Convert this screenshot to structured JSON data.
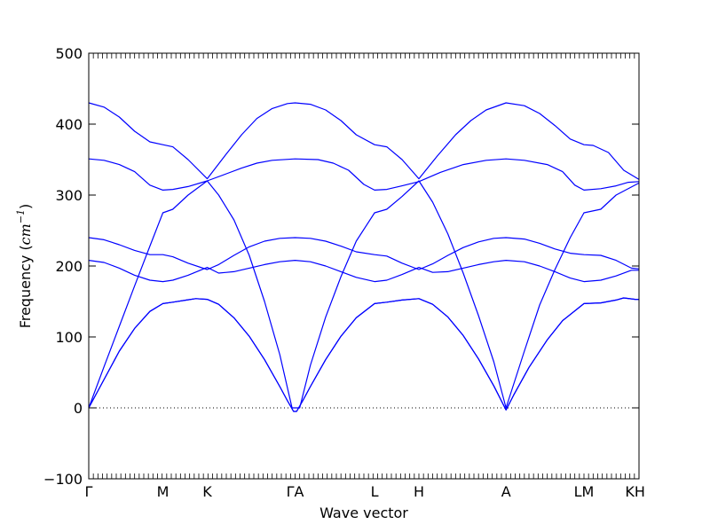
{
  "chart_data": {
    "type": "line",
    "title": "",
    "xlabel": "Wave vector",
    "ylabel_prefix": "Frequency (",
    "ylabel_unit_base": "cm",
    "ylabel_unit_exp": "−1",
    "ylabel_suffix": ")",
    "ylim": [
      -100,
      500
    ],
    "yticks": [
      -100,
      0,
      100,
      200,
      300,
      400,
      500
    ],
    "ytick_labels": [
      "−100",
      "0",
      "100",
      "200",
      "300",
      "400",
      "500"
    ],
    "xlim": [
      0,
      3.6
    ],
    "xticks": [
      {
        "label": "Γ",
        "x": 0.0
      },
      {
        "label": "M",
        "x": 0.485
      },
      {
        "label": "K",
        "x": 0.775
      },
      {
        "label": "ΓA",
        "x": 1.35
      },
      {
        "label": "L",
        "x": 1.87
      },
      {
        "label": "H",
        "x": 2.16
      },
      {
        "label": "A",
        "x": 2.73
      },
      {
        "label": "LM",
        "x": 3.24
      },
      {
        "label": "KH",
        "x": 3.575
      }
    ],
    "zero_line": true,
    "series_color": "#0000ff",
    "series": [
      {
        "values": [
          [
            0,
            0
          ],
          [
            0.1,
            40
          ],
          [
            0.2,
            80
          ],
          [
            0.3,
            112
          ],
          [
            0.4,
            136
          ],
          [
            0.485,
            147
          ],
          [
            0.55,
            149
          ],
          [
            0.64,
            152
          ],
          [
            0.7,
            154
          ],
          [
            0.775,
            153
          ],
          [
            0.85,
            146
          ],
          [
            0.95,
            127
          ],
          [
            1.05,
            101
          ],
          [
            1.15,
            68
          ],
          [
            1.25,
            30
          ],
          [
            1.3,
            10
          ],
          [
            1.34,
            -5
          ],
          [
            1.35,
            -5
          ],
          [
            1.36,
            -5
          ],
          [
            1.4,
            10
          ],
          [
            1.45,
            30
          ],
          [
            1.55,
            68
          ],
          [
            1.65,
            101
          ],
          [
            1.75,
            127
          ],
          [
            1.87,
            147
          ],
          [
            1.95,
            149
          ],
          [
            2.05,
            152
          ],
          [
            2.16,
            154
          ],
          [
            2.25,
            146
          ],
          [
            2.35,
            128
          ],
          [
            2.45,
            102
          ],
          [
            2.55,
            69
          ],
          [
            2.65,
            31
          ],
          [
            2.73,
            -3
          ],
          [
            2.78,
            18
          ],
          [
            2.88,
            57
          ],
          [
            3.0,
            96
          ],
          [
            3.1,
            123
          ],
          [
            3.24,
            147
          ],
          [
            3.35,
            148
          ],
          [
            3.45,
            152
          ],
          [
            3.5,
            155
          ],
          [
            3.575,
            153
          ],
          [
            3.6,
            153
          ]
        ]
      },
      {
        "values": [
          [
            0,
            0
          ],
          [
            0.1,
            40
          ],
          [
            0.2,
            80
          ],
          [
            0.3,
            112
          ],
          [
            0.4,
            136
          ],
          [
            0.485,
            147
          ],
          [
            0.55,
            149
          ],
          [
            0.64,
            152
          ],
          [
            0.7,
            154
          ],
          [
            0.775,
            153
          ],
          [
            0.85,
            146
          ],
          [
            0.95,
            127
          ],
          [
            1.05,
            101
          ],
          [
            1.15,
            68
          ],
          [
            1.25,
            30
          ],
          [
            1.3,
            10
          ],
          [
            1.34,
            -5
          ],
          [
            1.35,
            -5
          ],
          [
            1.36,
            -5
          ],
          [
            1.4,
            10
          ],
          [
            1.45,
            30
          ],
          [
            1.55,
            68
          ],
          [
            1.65,
            101
          ],
          [
            1.75,
            127
          ],
          [
            1.87,
            147
          ],
          [
            1.95,
            149
          ],
          [
            2.05,
            152
          ],
          [
            2.16,
            154
          ],
          [
            2.25,
            146
          ],
          [
            2.35,
            128
          ],
          [
            2.45,
            102
          ],
          [
            2.55,
            69
          ],
          [
            2.65,
            31
          ],
          [
            2.73,
            -3
          ],
          [
            2.78,
            18
          ],
          [
            2.88,
            57
          ],
          [
            3.0,
            96
          ],
          [
            3.1,
            123
          ],
          [
            3.24,
            147
          ],
          [
            3.35,
            148
          ],
          [
            3.45,
            152
          ],
          [
            3.5,
            155
          ],
          [
            3.575,
            153
          ],
          [
            3.6,
            153
          ]
        ]
      },
      {
        "values": [
          [
            0,
            0
          ],
          [
            0.1,
            58
          ],
          [
            0.2,
            115
          ],
          [
            0.3,
            172
          ],
          [
            0.4,
            228
          ],
          [
            0.485,
            275
          ],
          [
            0.55,
            280
          ],
          [
            0.65,
            300
          ],
          [
            0.775,
            320
          ],
          [
            0.9,
            330
          ],
          [
            1.0,
            338
          ],
          [
            1.1,
            345
          ],
          [
            1.2,
            349
          ],
          [
            1.35,
            351
          ],
          [
            1.5,
            350
          ],
          [
            1.6,
            345
          ],
          [
            1.7,
            335
          ],
          [
            1.8,
            315
          ],
          [
            1.87,
            307
          ],
          [
            1.95,
            308
          ],
          [
            2.05,
            313
          ],
          [
            2.16,
            319
          ],
          [
            2.3,
            332
          ],
          [
            2.45,
            343
          ],
          [
            2.6,
            349
          ],
          [
            2.73,
            351
          ],
          [
            2.85,
            349
          ],
          [
            3.0,
            343
          ],
          [
            3.1,
            333
          ],
          [
            3.18,
            314
          ],
          [
            3.24,
            307
          ],
          [
            3.35,
            309
          ],
          [
            3.45,
            313
          ],
          [
            3.53,
            318
          ],
          [
            3.6,
            319
          ]
        ]
      },
      {
        "values": [
          [
            0,
            430
          ],
          [
            0.1,
            424
          ],
          [
            0.2,
            410
          ],
          [
            0.3,
            390
          ],
          [
            0.4,
            375
          ],
          [
            0.485,
            371
          ],
          [
            0.55,
            368
          ],
          [
            0.65,
            350
          ],
          [
            0.775,
            323
          ],
          [
            0.9,
            358
          ],
          [
            1.0,
            385
          ],
          [
            1.1,
            408
          ],
          [
            1.2,
            422
          ],
          [
            1.3,
            429
          ],
          [
            1.35,
            430
          ],
          [
            1.45,
            428
          ],
          [
            1.55,
            420
          ],
          [
            1.65,
            405
          ],
          [
            1.75,
            385
          ],
          [
            1.87,
            371
          ],
          [
            1.95,
            368
          ],
          [
            2.05,
            350
          ],
          [
            2.16,
            323
          ],
          [
            2.28,
            355
          ],
          [
            2.4,
            385
          ],
          [
            2.5,
            405
          ],
          [
            2.6,
            420
          ],
          [
            2.73,
            430
          ],
          [
            2.85,
            426
          ],
          [
            2.95,
            415
          ],
          [
            3.05,
            398
          ],
          [
            3.15,
            379
          ],
          [
            3.24,
            371
          ],
          [
            3.3,
            370
          ],
          [
            3.4,
            360
          ],
          [
            3.5,
            335
          ],
          [
            3.6,
            322
          ]
        ]
      },
      {
        "values": [
          [
            0,
            351
          ],
          [
            0.1,
            349
          ],
          [
            0.2,
            343
          ],
          [
            0.3,
            333
          ],
          [
            0.4,
            314
          ],
          [
            0.485,
            307
          ],
          [
            0.55,
            308
          ],
          [
            0.65,
            312
          ],
          [
            0.775,
            320
          ],
          [
            0.85,
            300
          ],
          [
            0.95,
            265
          ],
          [
            1.05,
            215
          ],
          [
            1.15,
            150
          ],
          [
            1.25,
            75
          ],
          [
            1.33,
            0
          ],
          [
            1.35,
            0
          ],
          [
            1.38,
            0
          ],
          [
            1.45,
            60
          ],
          [
            1.55,
            128
          ],
          [
            1.65,
            185
          ],
          [
            1.75,
            235
          ],
          [
            1.87,
            275
          ],
          [
            1.95,
            280
          ],
          [
            2.05,
            298
          ],
          [
            2.16,
            320
          ],
          [
            2.25,
            290
          ],
          [
            2.35,
            245
          ],
          [
            2.45,
            190
          ],
          [
            2.55,
            130
          ],
          [
            2.65,
            65
          ],
          [
            2.73,
            0
          ],
          [
            2.85,
            80
          ],
          [
            2.95,
            145
          ],
          [
            3.05,
            195
          ],
          [
            3.15,
            240
          ],
          [
            3.24,
            275
          ],
          [
            3.35,
            280
          ],
          [
            3.45,
            300
          ],
          [
            3.6,
            317
          ]
        ]
      },
      {
        "values": [
          [
            0,
            240
          ],
          [
            0.1,
            237
          ],
          [
            0.2,
            230
          ],
          [
            0.3,
            222
          ],
          [
            0.4,
            216
          ],
          [
            0.485,
            216
          ],
          [
            0.55,
            213
          ],
          [
            0.65,
            204
          ],
          [
            0.775,
            195
          ],
          [
            0.85,
            202
          ],
          [
            0.95,
            215
          ],
          [
            1.05,
            227
          ],
          [
            1.15,
            235
          ],
          [
            1.25,
            239
          ],
          [
            1.35,
            240
          ],
          [
            1.45,
            239
          ],
          [
            1.55,
            235
          ],
          [
            1.65,
            228
          ],
          [
            1.75,
            220
          ],
          [
            1.87,
            216
          ],
          [
            1.95,
            214
          ],
          [
            2.05,
            204
          ],
          [
            2.16,
            195
          ],
          [
            2.25,
            203
          ],
          [
            2.35,
            215
          ],
          [
            2.45,
            226
          ],
          [
            2.55,
            234
          ],
          [
            2.65,
            239
          ],
          [
            2.73,
            240
          ],
          [
            2.85,
            238
          ],
          [
            2.95,
            232
          ],
          [
            3.05,
            224
          ],
          [
            3.15,
            218
          ],
          [
            3.24,
            216
          ],
          [
            3.35,
            215
          ],
          [
            3.45,
            208
          ],
          [
            3.55,
            197
          ],
          [
            3.6,
            196
          ]
        ]
      },
      {
        "values": [
          [
            0,
            208
          ],
          [
            0.1,
            205
          ],
          [
            0.2,
            197
          ],
          [
            0.3,
            187
          ],
          [
            0.4,
            180
          ],
          [
            0.485,
            178
          ],
          [
            0.55,
            180
          ],
          [
            0.65,
            187
          ],
          [
            0.775,
            198
          ],
          [
            0.85,
            190
          ],
          [
            0.95,
            192
          ],
          [
            1.05,
            197
          ],
          [
            1.15,
            202
          ],
          [
            1.25,
            206
          ],
          [
            1.35,
            208
          ],
          [
            1.45,
            206
          ],
          [
            1.55,
            200
          ],
          [
            1.65,
            192
          ],
          [
            1.75,
            184
          ],
          [
            1.87,
            178
          ],
          [
            1.95,
            180
          ],
          [
            2.05,
            188
          ],
          [
            2.16,
            198
          ],
          [
            2.25,
            191
          ],
          [
            2.35,
            192
          ],
          [
            2.45,
            197
          ],
          [
            2.55,
            202
          ],
          [
            2.65,
            206
          ],
          [
            2.73,
            208
          ],
          [
            2.85,
            206
          ],
          [
            2.95,
            200
          ],
          [
            3.05,
            192
          ],
          [
            3.15,
            183
          ],
          [
            3.24,
            178
          ],
          [
            3.35,
            180
          ],
          [
            3.45,
            186
          ],
          [
            3.55,
            194
          ],
          [
            3.6,
            194
          ]
        ]
      }
    ]
  }
}
